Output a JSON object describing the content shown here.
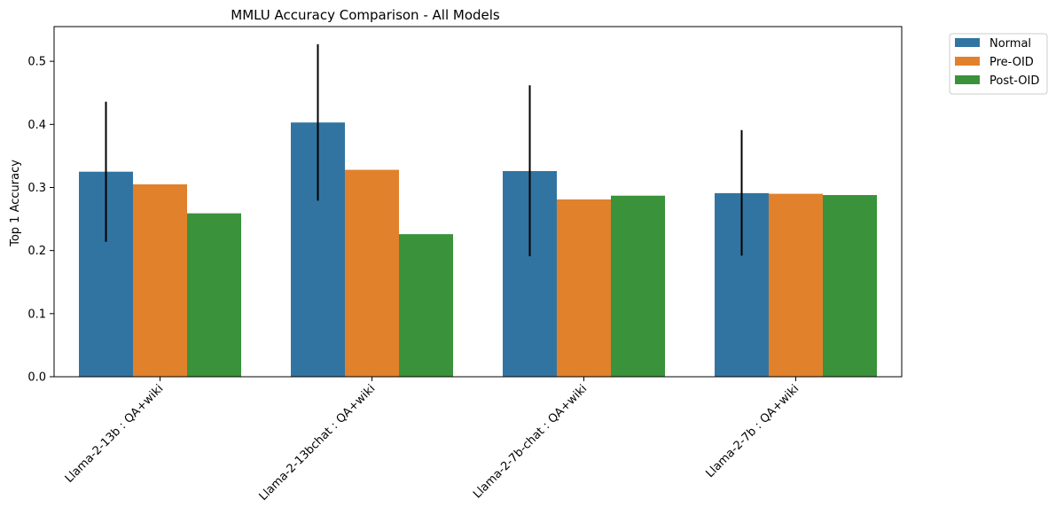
{
  "chart_data": {
    "type": "bar",
    "title": "MMLU Accuracy Comparison - All Models",
    "xlabel": "",
    "ylabel": "Top 1 Accuracy",
    "ylim": [
      0,
      0.555
    ],
    "yticks": [
      "0.0",
      "0.1",
      "0.2",
      "0.3",
      "0.4",
      "0.5"
    ],
    "grid": false,
    "legend_position": "outside-top-right",
    "categories": [
      "Llama-2-13b : QA+wiki",
      "Llama-2-13bchat : QA+wiki",
      "Llama-2-7b-chat : QA+wiki",
      "Llama-2-7b : QA+wiki"
    ],
    "series": [
      {
        "name": "Normal",
        "color": "#3274a1",
        "values": [
          0.325,
          0.403,
          0.326,
          0.291
        ],
        "error": [
          [
            0.214,
            0.436
          ],
          [
            0.279,
            0.527
          ],
          [
            0.191,
            0.462
          ],
          [
            0.192,
            0.391
          ]
        ]
      },
      {
        "name": "Pre-OID",
        "color": "#e1812c",
        "values": [
          0.305,
          0.328,
          0.281,
          0.29
        ]
      },
      {
        "name": "Post-OID",
        "color": "#3a923a",
        "values": [
          0.259,
          0.226,
          0.287,
          0.288
        ]
      }
    ]
  }
}
